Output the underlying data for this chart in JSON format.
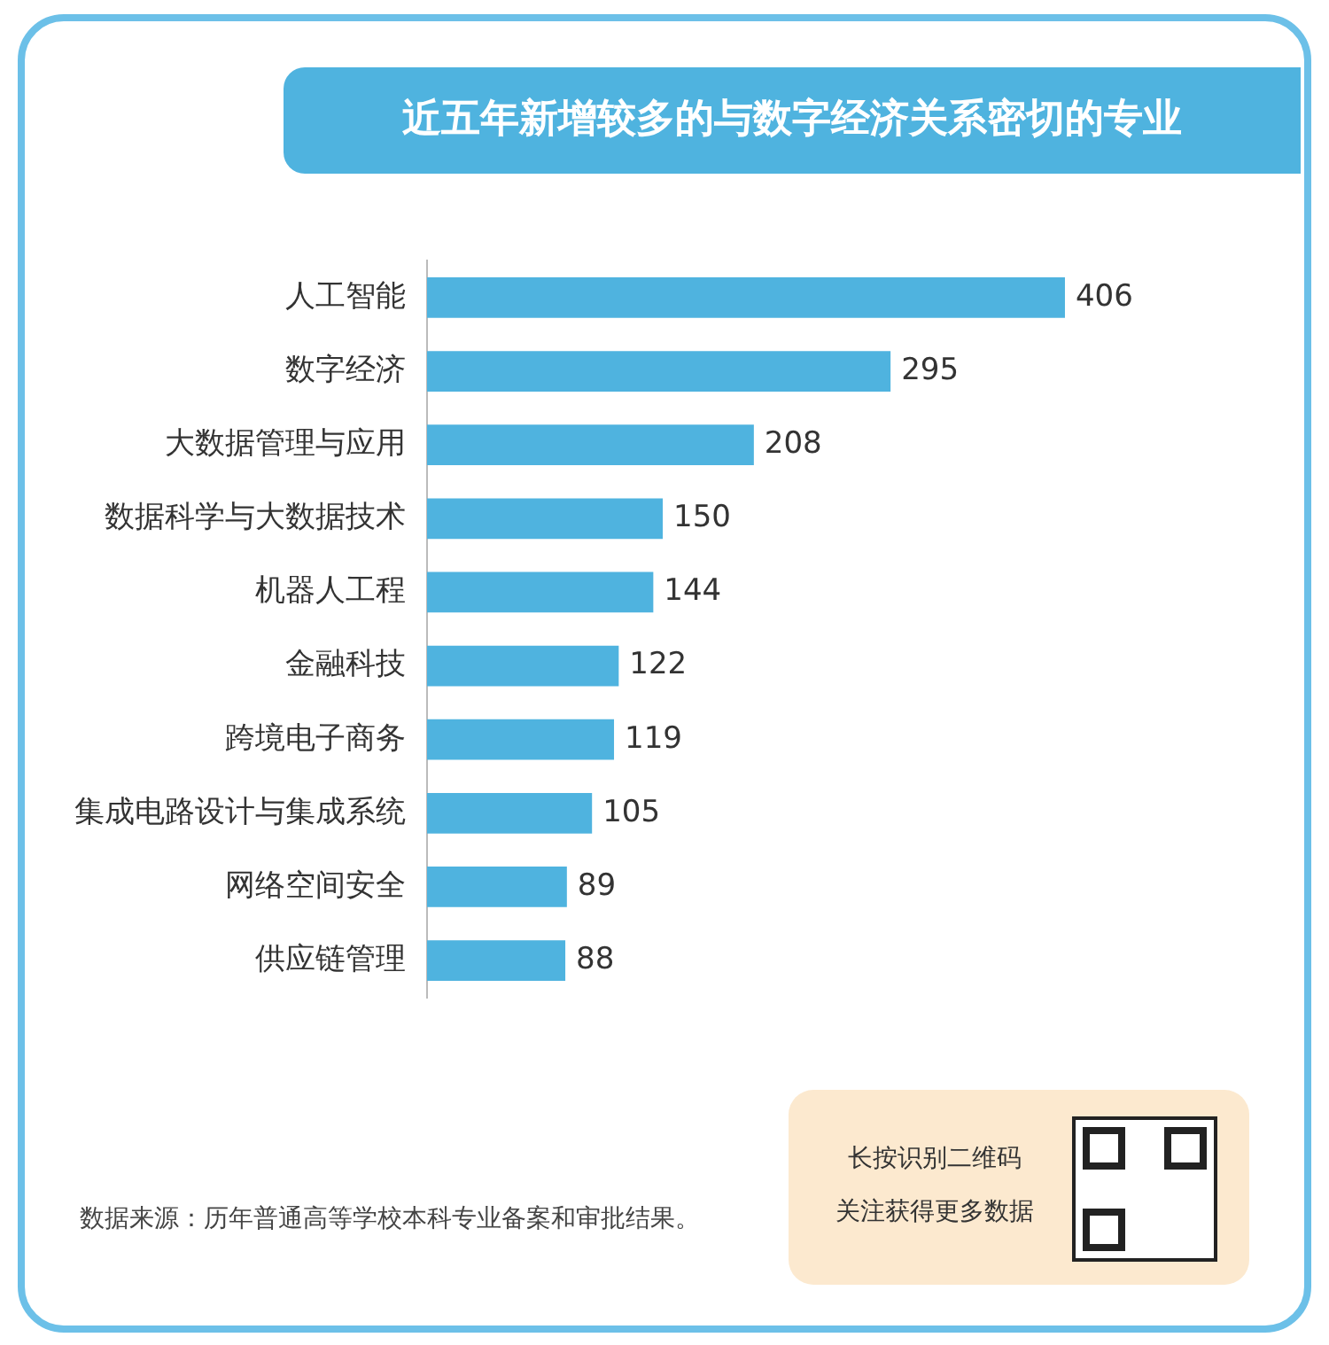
{
  "chart_data": {
    "type": "bar",
    "orientation": "horizontal",
    "title": "近五年新增较多的与数字经济关系密切的专业",
    "categories": [
      "人工智能",
      "数字经济",
      "大数据管理与应用",
      "数据科学与大数据技术",
      "机器人工程",
      "金融科技",
      "跨境电子商务",
      "集成电路设计与集成系统",
      "网络空间安全",
      "供应链管理"
    ],
    "values": [
      406,
      295,
      208,
      150,
      144,
      122,
      119,
      105,
      89,
      88
    ],
    "color": "#4fb3df",
    "data_labels": true,
    "grid": false,
    "legend": false,
    "tick_labels": "y",
    "annotations": [
      "数据来源：历年普通高等学校本科专业备案和审批结果。",
      "长按识别二维码",
      "关注获得更多数据"
    ]
  }
}
